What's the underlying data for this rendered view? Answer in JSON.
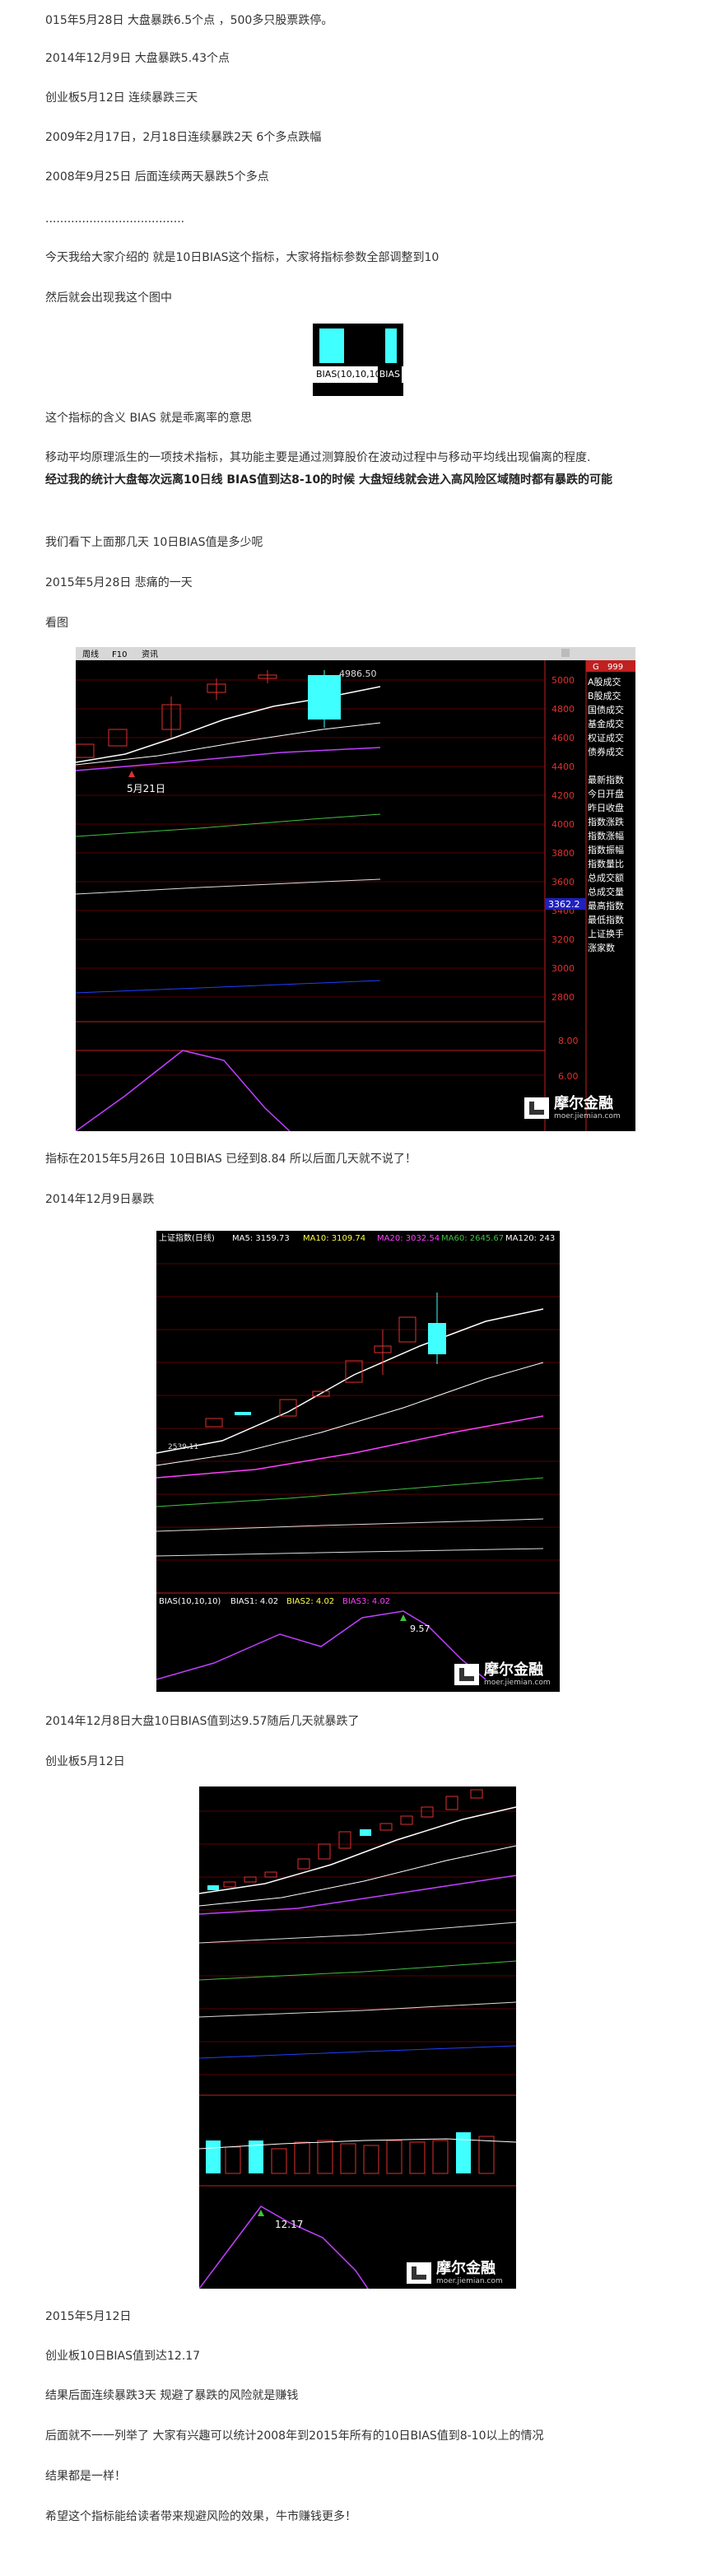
{
  "paragraphs": {
    "p1": "015年5月28日 大盘暴跌6.5个点 ，500多只股票跌停。",
    "p2": "2014年12月9日 大盘暴跌5.43个点",
    "p3": "创业板5月12日 连续暴跌三天",
    "p4": "2009年2月17日，2月18日连续暴跌2天 6个多点跌幅",
    "p5": "2008年9月25日 后面连续两天暴跌5个多点",
    "p6": "......................................",
    "p7": "今天我给大家介绍的 就是10日BIAS这个指标，大家将指标参数全部调整到10",
    "p8": "然后就会出现我这个图中",
    "p9": "这个指标的含义 BIAS 就是乖离率的意思",
    "p10": "移动平均原理派生的一项技术指标，其功能主要是通过测算股价在波动过程中与移动平均线出现偏离的程度.",
    "p11": "经过我的统计大盘每次远离10日线 BIAS值到达8-10的时候 大盘短线就会进入高风险区域随时都有暴跌的可能",
    "p12": "我们看下上面那几天 10日BIAS值是多少呢",
    "p13": "2015年5月28日 悲痛的一天",
    "p14": "看图",
    "p15": "指标在2015年5月26日 10日BIAS 已经到8.84 所以后面几天就不说了！",
    "p16": "2014年12月9日暴跌",
    "p17": "2014年12月8日大盘10日BIAS值到达9.57随后几天就暴跌了",
    "p18": "创业板5月12日",
    "p19": "2015年5月12日",
    "p20": "创业板10日BIAS值到达12.17",
    "p21": "结果后面连续暴跌3天 规避了暴跌的风险就是赚钱",
    "p22": "后面就不一一列举了 大家有兴趣可以统计2008年到2015年所有的10日BIAS值到8-10以上的情况",
    "p23": "结果都是一样！",
    "p24": "希望这个指标能给读者带来规避风险的效果，牛市赚钱更多！"
  },
  "small_image": {
    "label": "BIAS(10,10,10)",
    "label2": "BIAS"
  },
  "chart1": {
    "menu": [
      "周线",
      "F10",
      "资讯"
    ],
    "high_label": "4986.50",
    "date_label": "5月21日",
    "price_ticks": [
      "5000",
      "4800",
      "4600",
      "4400",
      "4200",
      "4000",
      "3800",
      "3600",
      "3400",
      "3200",
      "3000",
      "2800"
    ],
    "current_value": "3362.2",
    "bias_ticks": [
      "8.00",
      "6.00"
    ],
    "side_header": "999",
    "side_items": [
      "A股成交",
      "B股成交",
      "国债成交",
      "基金成交",
      "权证成交",
      "债券成交",
      "",
      "最新指数",
      "今日开盘",
      "昨日收盘",
      "指数涨跌",
      "指数涨幅",
      "指数振幅",
      "指数量比",
      "总成交额",
      "总成交量",
      "最高指数",
      "最低指数",
      "上证换手",
      "涨家数"
    ],
    "watermark": "摩尔金融",
    "watermark_sub": "moer.jiemian.com"
  },
  "chart2": {
    "header": {
      "title": "上证指数(日线)",
      "ma5": "MA5: 3159.73",
      "ma10": "MA10: 3109.74",
      "ma20": "MA20: 3032.54",
      "ma60": "MA60: 2645.67",
      "ma120": "MA120: 243"
    },
    "low_label": "2539.11",
    "bias_header": {
      "title": "BIAS(10,10,10)",
      "b1": "BIAS1: 4.02",
      "b2": "BIAS2: 4.02",
      "b3": "BIAS3: 4.02"
    },
    "peak_label": "9.57",
    "watermark": "摩尔金融",
    "watermark_sub": "moer.jiemian.com"
  },
  "chart3": {
    "peak_label": "12.17",
    "watermark": "摩尔金融",
    "watermark_sub": "moer.jiemian.com"
  },
  "colors": {
    "up": "#e03030",
    "down": "#40ffff",
    "bias": "#c040ff",
    "ma_white": "#ffffff",
    "ma_yellow": "#ffff40",
    "ma_green": "#40c040"
  }
}
